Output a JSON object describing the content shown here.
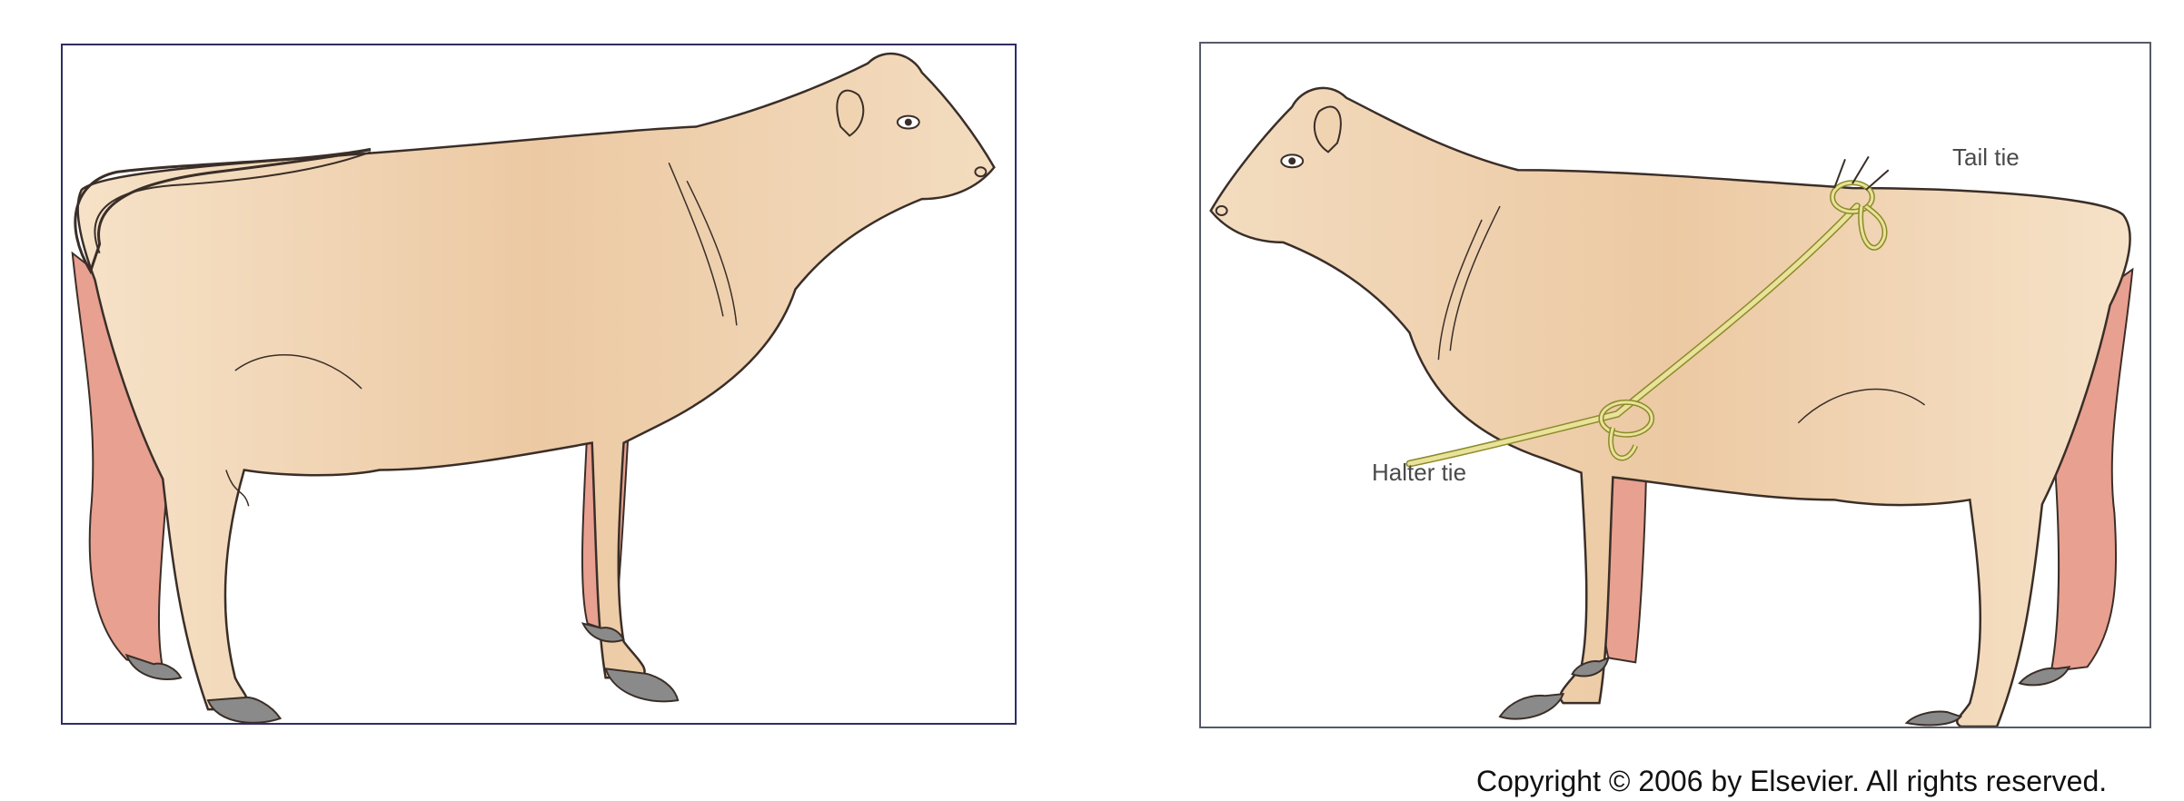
{
  "figure": {
    "panels": [
      {
        "id": "left",
        "description_icon": "cow-with-tail-looped-over-back-icon"
      },
      {
        "id": "right",
        "description_icon": "cow-with-tail-tie-and-halter-tie-icon"
      }
    ],
    "labels": {
      "tail_tie": "Tail tie",
      "halter_tie": "Halter tie"
    },
    "copyright": "Copyright © 2006 by Elsevier. All rights reserved.",
    "colors": {
      "body": "#f0d3b0",
      "leg_inner": "#e8a090",
      "outline": "#3a2e28",
      "rope": "#e8e29a",
      "rope_outline": "#8c8a2a",
      "hoof": "#7a7a7a"
    }
  }
}
